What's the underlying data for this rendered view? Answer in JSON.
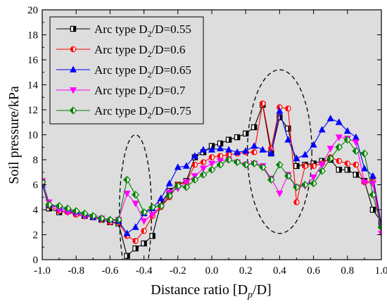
{
  "chart_data": {
    "type": "line",
    "xlabel": "Distance ratio [D",
    "xlabel_sub": "p",
    "xlabel_end": "/D]",
    "ylabel": "Soil pressure/kPa",
    "xlim": [
      -1.0,
      1.0
    ],
    "ylim": [
      0,
      20
    ],
    "xticks": [
      "-1.0",
      "-0.8",
      "-0.6",
      "-0.4",
      "-0.2",
      "0.0",
      "0.2",
      "0.4",
      "0.6",
      "0.8",
      "1.0"
    ],
    "yticks": [
      "0",
      "2",
      "4",
      "6",
      "8",
      "10",
      "12",
      "14",
      "16",
      "18",
      "20"
    ],
    "grid": false,
    "background": "#dddddd",
    "legend_position": "top-left",
    "annotations": [
      "dashed ellipse around x≈-0.45",
      "dashed ellipse around x≈0.4"
    ],
    "series": [
      {
        "name_prefix": "Arc type D",
        "name_sub": "2",
        "name_suffix": "/D=0.55",
        "color": "#000000",
        "marker": "square-half",
        "x": [
          -1.0,
          -0.96,
          -0.9,
          -0.85,
          -0.8,
          -0.75,
          -0.7,
          -0.65,
          -0.6,
          -0.55,
          -0.5,
          -0.45,
          -0.4,
          -0.35,
          -0.3,
          -0.25,
          -0.2,
          -0.15,
          -0.1,
          -0.05,
          0.0,
          0.05,
          0.1,
          0.15,
          0.2,
          0.25,
          0.3,
          0.35,
          0.4,
          0.45,
          0.5,
          0.55,
          0.6,
          0.65,
          0.7,
          0.75,
          0.8,
          0.85,
          0.9,
          0.95,
          1.0
        ],
        "y": [
          6.2,
          4.1,
          3.8,
          3.9,
          3.7,
          3.5,
          3.4,
          3.2,
          3.0,
          2.9,
          0.3,
          0.9,
          1.3,
          1.9,
          4.5,
          5.5,
          6.0,
          6.3,
          8.2,
          8.6,
          9.1,
          9.3,
          9.6,
          9.8,
          10.1,
          10.6,
          12.4,
          8.5,
          11.4,
          10.5,
          7.5,
          7.6,
          7.7,
          7.9,
          8.0,
          7.2,
          7.2,
          6.8,
          6.3,
          4.0,
          3.0
        ]
      },
      {
        "name_prefix": "Arc type D",
        "name_sub": "2",
        "name_suffix": "/D=0.6",
        "color": "#ff0000",
        "marker": "circle-half",
        "x": [
          -1.0,
          -0.96,
          -0.9,
          -0.85,
          -0.8,
          -0.75,
          -0.7,
          -0.65,
          -0.6,
          -0.55,
          -0.5,
          -0.45,
          -0.4,
          -0.35,
          -0.3,
          -0.25,
          -0.2,
          -0.15,
          -0.1,
          -0.05,
          0.0,
          0.05,
          0.1,
          0.15,
          0.2,
          0.25,
          0.3,
          0.35,
          0.4,
          0.45,
          0.5,
          0.55,
          0.6,
          0.65,
          0.7,
          0.75,
          0.8,
          0.85,
          0.9,
          0.95,
          1.0
        ],
        "y": [
          6.1,
          4.3,
          3.9,
          3.8,
          3.6,
          3.5,
          3.4,
          3.2,
          3.0,
          3.0,
          1.9,
          1.5,
          2.3,
          3.5,
          4.2,
          5.0,
          6.0,
          6.2,
          7.6,
          7.8,
          8.2,
          8.3,
          8.4,
          8.5,
          8.6,
          8.6,
          12.5,
          8.9,
          12.2,
          12.1,
          4.6,
          7.5,
          7.5,
          7.7,
          8.2,
          7.9,
          7.7,
          7.6,
          6.2,
          6.3,
          2.6
        ]
      },
      {
        "name_prefix": "Arc type D",
        "name_sub": "2",
        "name_suffix": "/D=0.65",
        "color": "#0000ff",
        "marker": "triangle-up",
        "x": [
          -1.0,
          -0.96,
          -0.9,
          -0.85,
          -0.8,
          -0.75,
          -0.7,
          -0.65,
          -0.6,
          -0.55,
          -0.5,
          -0.45,
          -0.4,
          -0.35,
          -0.3,
          -0.25,
          -0.2,
          -0.15,
          -0.1,
          -0.05,
          0.0,
          0.05,
          0.1,
          0.15,
          0.2,
          0.25,
          0.3,
          0.35,
          0.4,
          0.45,
          0.5,
          0.55,
          0.6,
          0.65,
          0.7,
          0.75,
          0.8,
          0.85,
          0.9,
          0.95,
          1.0
        ],
        "y": [
          6.0,
          4.4,
          4.1,
          4.0,
          3.8,
          3.6,
          3.4,
          3.3,
          3.2,
          3.1,
          2.1,
          2.6,
          3.7,
          4.1,
          4.9,
          6.1,
          7.4,
          7.5,
          8.3,
          8.8,
          8.8,
          8.9,
          8.8,
          8.6,
          8.7,
          9.1,
          8.8,
          8.5,
          11.9,
          9.6,
          8.1,
          8.4,
          9.2,
          10.4,
          11.3,
          11.0,
          10.3,
          9.8,
          7.3,
          6.7,
          2.8
        ]
      },
      {
        "name_prefix": "Arc type D",
        "name_sub": "2",
        "name_suffix": "/D=0.7",
        "color": "#ff00ff",
        "marker": "triangle-down",
        "x": [
          -1.0,
          -0.96,
          -0.9,
          -0.85,
          -0.8,
          -0.75,
          -0.7,
          -0.65,
          -0.6,
          -0.55,
          -0.5,
          -0.45,
          -0.4,
          -0.35,
          -0.3,
          -0.25,
          -0.2,
          -0.15,
          -0.1,
          -0.05,
          0.0,
          0.05,
          0.1,
          0.15,
          0.2,
          0.25,
          0.3,
          0.35,
          0.4,
          0.45,
          0.5,
          0.55,
          0.6,
          0.65,
          0.7,
          0.75,
          0.8,
          0.85,
          0.9,
          0.95,
          1.0
        ],
        "y": [
          6.3,
          4.6,
          4.0,
          3.8,
          3.7,
          3.5,
          3.4,
          3.3,
          3.1,
          3.2,
          5.3,
          4.5,
          3.1,
          3.6,
          4.3,
          5.4,
          5.7,
          6.2,
          6.7,
          7.3,
          7.7,
          7.9,
          8.0,
          7.8,
          7.6,
          7.7,
          7.5,
          6.5,
          5.3,
          6.8,
          5.8,
          5.9,
          6.6,
          7.6,
          8.9,
          9.8,
          9.7,
          9.4,
          6.2,
          6.1,
          2.1
        ]
      },
      {
        "name_prefix": "Arc type D",
        "name_sub": "2",
        "name_suffix": "/D=0.75",
        "color": "#008000",
        "marker": "diamond-half",
        "x": [
          -1.0,
          -0.96,
          -0.9,
          -0.85,
          -0.8,
          -0.75,
          -0.7,
          -0.65,
          -0.6,
          -0.55,
          -0.5,
          -0.45,
          -0.4,
          -0.35,
          -0.3,
          -0.25,
          -0.2,
          -0.15,
          -0.1,
          -0.05,
          0.0,
          0.05,
          0.1,
          0.15,
          0.2,
          0.25,
          0.3,
          0.35,
          0.4,
          0.45,
          0.5,
          0.55,
          0.6,
          0.65,
          0.7,
          0.75,
          0.8,
          0.85,
          0.9,
          0.95,
          1.0
        ],
        "y": [
          6.2,
          4.4,
          4.3,
          4.1,
          3.9,
          3.7,
          3.5,
          3.3,
          3.2,
          3.2,
          6.4,
          5.2,
          3.8,
          4.2,
          4.3,
          5.1,
          5.9,
          5.8,
          6.4,
          6.8,
          7.2,
          7.6,
          8.0,
          7.8,
          7.6,
          7.7,
          7.4,
          6.4,
          7.6,
          6.7,
          5.8,
          6.0,
          6.1,
          7.1,
          8.1,
          9.0,
          9.6,
          8.7,
          8.5,
          5.2,
          2.6
        ]
      }
    ]
  }
}
